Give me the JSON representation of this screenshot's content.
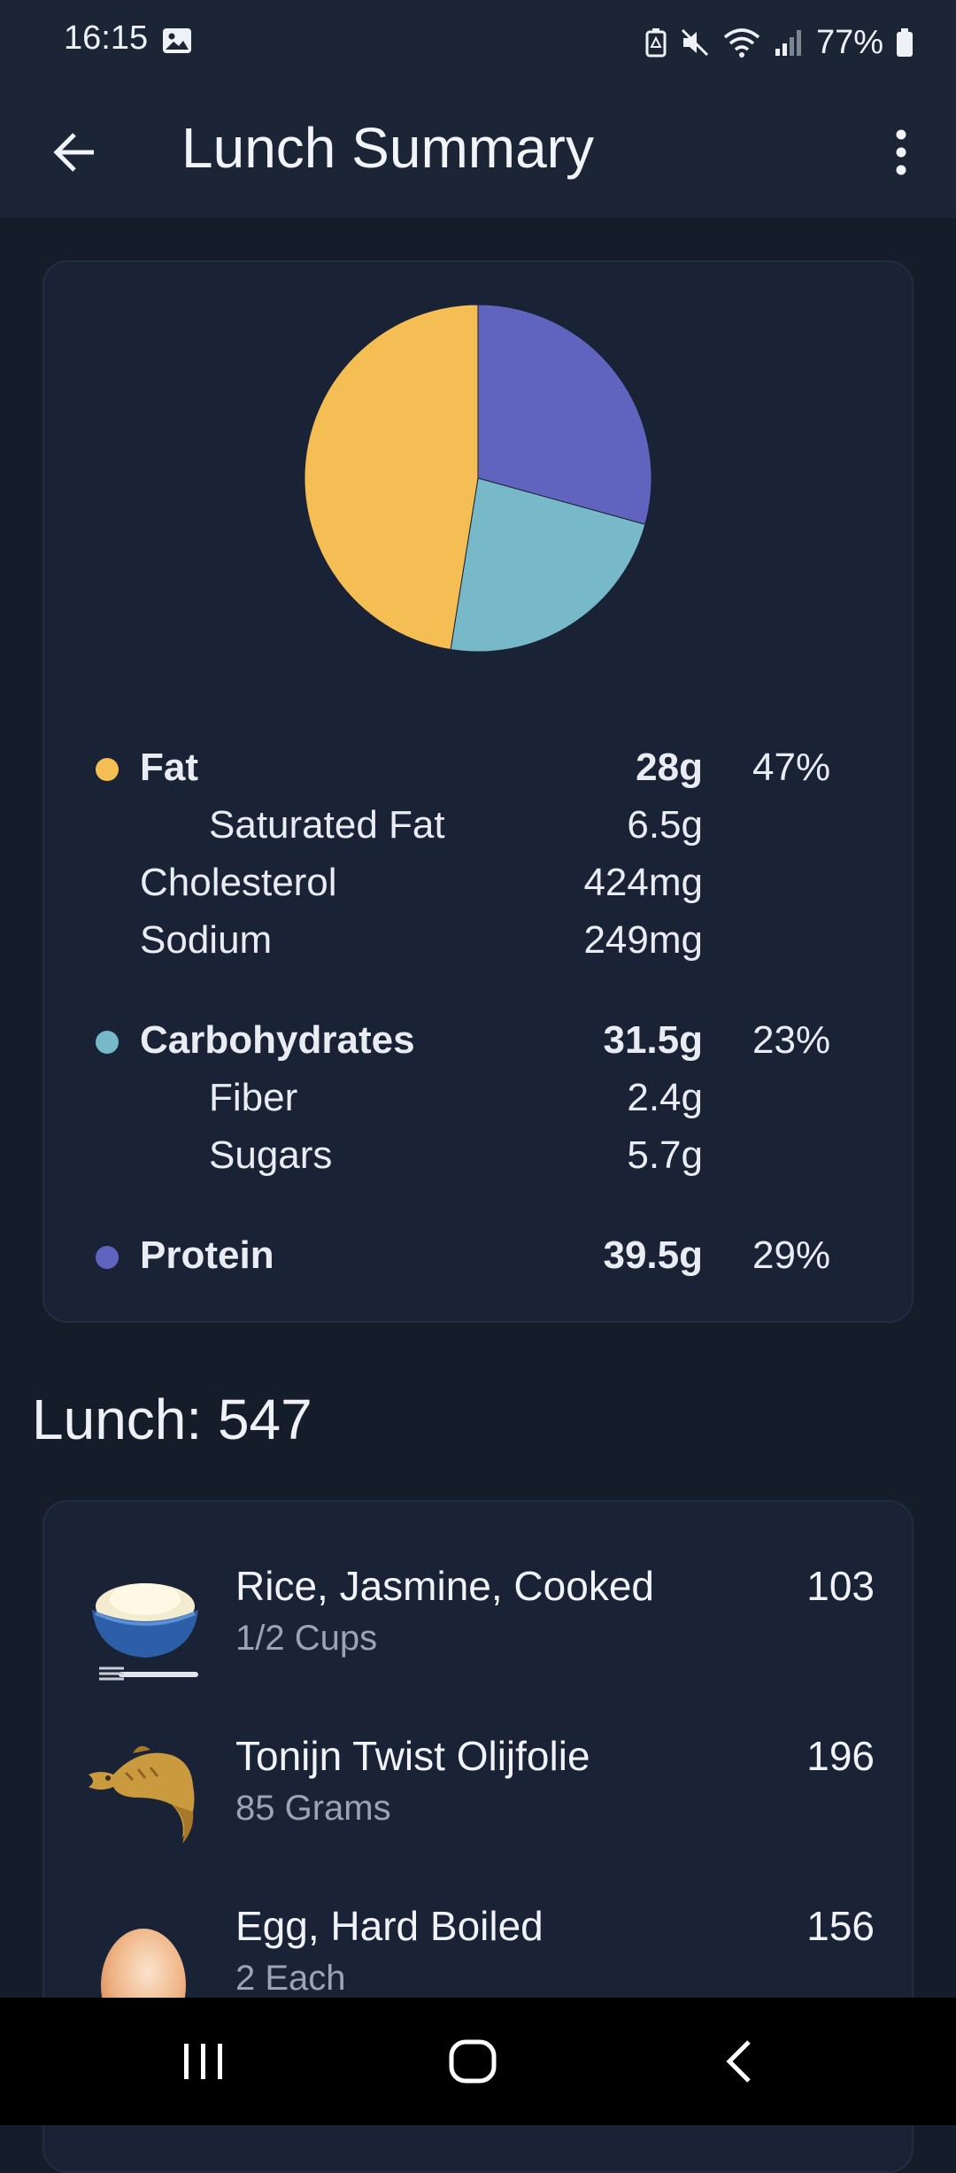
{
  "status_bar": {
    "time": "16:15",
    "battery": "77%",
    "icons": [
      "image-icon",
      "battery-saver-icon",
      "mute-icon",
      "wifi-icon",
      "signal-icon",
      "battery-icon"
    ]
  },
  "app_bar": {
    "title": "Lunch Summary",
    "back_icon": "arrow-left-icon",
    "more_icon": "more-vert-icon"
  },
  "colors": {
    "fat": "#f4be55",
    "carbohydrates": "#78b9c9",
    "protein": "#6164bf",
    "background": "#151d2b",
    "card": "#192335"
  },
  "chart_data": {
    "type": "pie",
    "slices": [
      {
        "label": "Protein",
        "percent": 29
      },
      {
        "label": "Carbohydrates",
        "percent": 23
      },
      {
        "label": "Fat",
        "percent": 47
      }
    ]
  },
  "macros": {
    "fat": {
      "label": "Fat",
      "amount": "28g",
      "percent": "47%",
      "details": [
        {
          "label": "Saturated Fat",
          "amount": "6.5g"
        },
        {
          "label": "Cholesterol",
          "amount": "424mg"
        },
        {
          "label": "Sodium",
          "amount": "249mg"
        }
      ]
    },
    "carbs": {
      "label": "Carbohydrates",
      "amount": "31.5g",
      "percent": "23%",
      "details": [
        {
          "label": "Fiber",
          "amount": "2.4g"
        },
        {
          "label": "Sugars",
          "amount": "5.7g"
        }
      ]
    },
    "protein": {
      "label": "Protein",
      "amount": "39.5g",
      "percent": "29%"
    }
  },
  "lunch": {
    "heading": "Lunch: 547",
    "items": [
      {
        "name": "Rice, Jasmine, Cooked",
        "portion": "1/2 Cups",
        "calories": "103",
        "icon": "rice-bowl-icon"
      },
      {
        "name": "Tonijn Twist Olijfolie",
        "portion": "85 Grams",
        "calories": "196",
        "icon": "fish-icon"
      },
      {
        "name": "Egg, Hard Boiled",
        "portion": "2 Each",
        "calories": "156",
        "icon": "egg-icon"
      }
    ]
  },
  "nav_bar": {
    "icons": [
      "recent-apps-icon",
      "home-icon",
      "back-icon"
    ]
  }
}
